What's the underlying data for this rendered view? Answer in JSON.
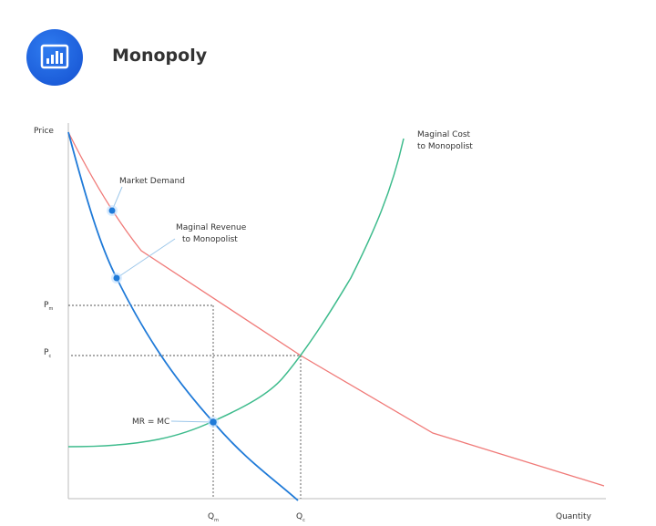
{
  "header": {
    "title": "Monopoly",
    "icon": "bar-chart-icon"
  },
  "diagram": {
    "y_axis_label": "Price",
    "x_axis_label": "Quantity",
    "price_labels": {
      "pm": "P",
      "pm_sub": "m",
      "pc": "P",
      "pc_sub": "c"
    },
    "quantity_labels": {
      "qm": "Q",
      "qm_sub": "m",
      "qc": "Q",
      "qc_sub": "c"
    },
    "curves": {
      "demand": {
        "label": "Market Demand",
        "color": "#f07a78"
      },
      "mr": {
        "label_line1": "Maginal Revenue",
        "label_line2": "to Monopolist",
        "color": "#1f7ad8"
      },
      "mc": {
        "label_line1": "Maginal Cost",
        "label_line2": "to Monopolist",
        "color": "#3dbb8c"
      }
    },
    "equilibrium_label": "MR = MC"
  }
}
